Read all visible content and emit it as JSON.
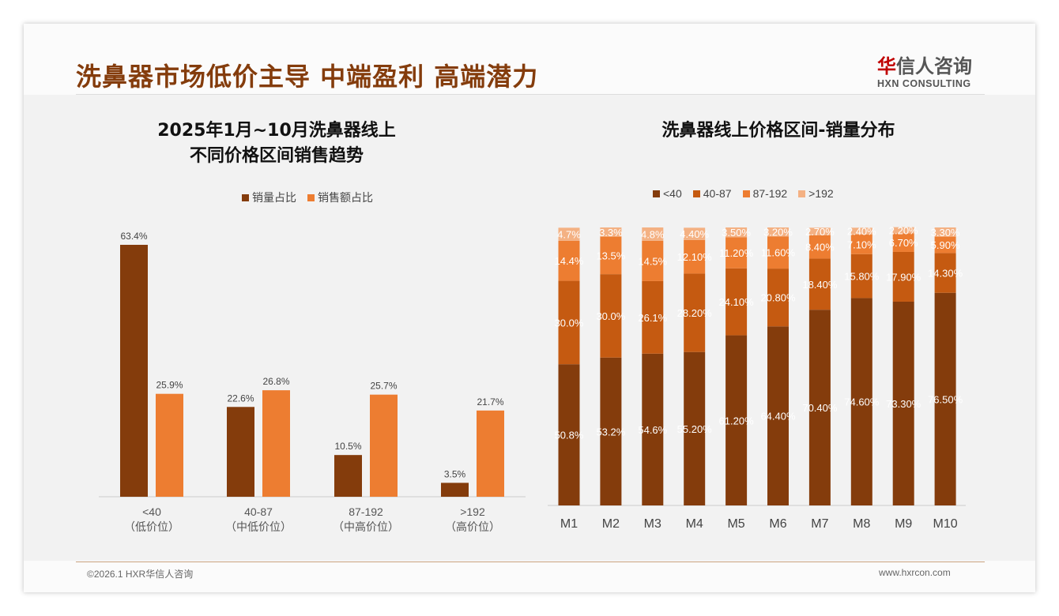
{
  "header": {
    "title": "洗鼻器市场低价主导 中端盈利 高端潜力",
    "logo_cn_red": "华",
    "logo_cn": "信人咨询",
    "logo_en": "HXN CONSULTING"
  },
  "footer": {
    "copyright": "©2026.1 HXR华信人咨询",
    "website": "www.hxrcon.com"
  },
  "chart_data": [
    {
      "type": "bar",
      "title": "2025年1月~10月洗鼻器线上\n不同价格区间销售趋势",
      "title_line1": "2025年1月~10月洗鼻器线上",
      "title_line2": "不同价格区间销售趋势",
      "categories": [
        "<40",
        "40-87",
        "87-192",
        ">192"
      ],
      "category_sublabels": [
        "（低价位）",
        "（中低价位）",
        "（中高价位）",
        "（高价位）"
      ],
      "series": [
        {
          "name": "销量占比",
          "color": "#843C0C",
          "values": [
            63.4,
            22.6,
            10.5,
            3.5
          ],
          "labels": [
            "63.4%",
            "22.6%",
            "10.5%",
            "3.5%"
          ]
        },
        {
          "name": "销售额占比",
          "color": "#ED7D31",
          "values": [
            25.9,
            26.8,
            25.7,
            21.7
          ],
          "labels": [
            "25.9%",
            "26.8%",
            "25.7%",
            "21.7%"
          ]
        }
      ],
      "ylim": [
        0,
        65
      ],
      "legend": "top-center",
      "grid": false
    },
    {
      "type": "bar",
      "stacked": true,
      "title": "洗鼻器线上价格区间-销量分布",
      "categories": [
        "M1",
        "M2",
        "M3",
        "M4",
        "M5",
        "M6",
        "M7",
        "M8",
        "M9",
        "M10"
      ],
      "series": [
        {
          "name": "<40",
          "color": "#843C0C",
          "values": [
            50.8,
            53.2,
            54.6,
            55.2,
            61.2,
            64.4,
            70.4,
            74.6,
            73.3,
            76.5
          ],
          "labels": [
            "50.8%",
            "53.2%",
            "54.6%",
            "55.20%",
            "61.20%",
            "64.40%",
            "70.40%",
            "74.60%",
            "73.30%",
            "76.50%"
          ]
        },
        {
          "name": "40-87",
          "color": "#C55A11",
          "values": [
            30.0,
            30.0,
            26.1,
            28.2,
            24.1,
            20.8,
            18.4,
            15.8,
            17.9,
            14.3
          ],
          "labels": [
            "30.0%",
            "30.0%",
            "26.1%",
            "28.20%",
            "24.10%",
            "20.80%",
            "18.40%",
            "15.80%",
            "17.90%",
            "14.30%"
          ]
        },
        {
          "name": "87-192",
          "color": "#ED7D31",
          "values": [
            14.4,
            13.5,
            14.5,
            12.1,
            11.2,
            11.6,
            8.4,
            7.1,
            6.7,
            5.9
          ],
          "labels": [
            "14.4%",
            "13.5%",
            "14.5%",
            "12.10%",
            "11.20%",
            "11.60%",
            "8.40%",
            "7.10%",
            "6.70%",
            "5.90%"
          ]
        },
        {
          "name": ">192",
          "color": "#F4B183",
          "values": [
            4.7,
            3.3,
            4.8,
            4.4,
            3.5,
            3.2,
            2.7,
            2.4,
            2.2,
            3.3
          ],
          "labels": [
            "4.7%",
            "3.3%",
            "4.8%",
            "4.40%",
            "3.50%",
            "3.20%",
            "2.70%",
            "2.40%",
            "2.20%",
            "3.30%"
          ]
        }
      ],
      "ylim": [
        0,
        100
      ],
      "legend": "top-center",
      "grid": false
    }
  ]
}
